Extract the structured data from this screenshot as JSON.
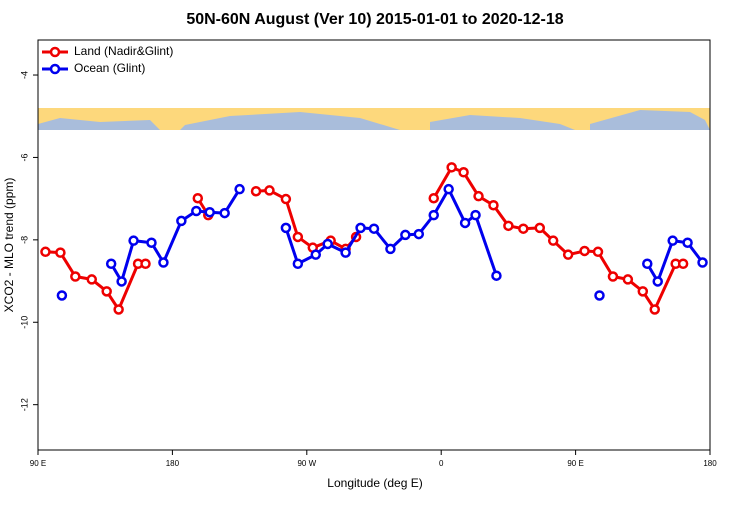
{
  "chart_data": {
    "type": "line",
    "title": "50N-60N August (Ver 10)   2015-01-01 to 2020-12-18",
    "x_label": "Longitude (deg E)",
    "y_label": "XCO2 - MLO trend (ppm)",
    "xlim": [
      90,
      540
    ],
    "xticks": [
      {
        "value": 90,
        "label": "90 E"
      },
      180,
      {
        "value": 270,
        "label": "90 W"
      },
      {
        "value": 360,
        "label": "0"
      },
      {
        "value": 450,
        "label": "90 E"
      },
      {
        "value": 540,
        "label": "180"
      }
    ],
    "ylim": [
      -13.1,
      -3.15
    ],
    "yticks": [
      -12,
      -10,
      -8,
      -6,
      -4
    ],
    "legend": "top-left",
    "series": [
      {
        "name": "Land (Nadir&Glint)",
        "color": "#ee0000",
        "x": [
          95,
          105,
          115,
          126,
          136,
          144,
          157,
          162,
          null,
          197,
          204,
          null,
          236,
          245,
          256,
          264,
          274,
          286,
          296,
          303,
          null,
          355,
          367,
          375,
          385,
          395,
          405,
          415,
          426,
          435,
          445,
          456,
          465,
          475,
          485,
          495,
          503,
          517,
          522
        ],
        "values": [
          -8.29,
          -8.31,
          -8.89,
          -8.96,
          -9.25,
          -9.69,
          -8.58,
          -8.58,
          null,
          -6.99,
          -7.4,
          null,
          -6.82,
          -6.8,
          -7.01,
          -7.93,
          -8.19,
          -8.02,
          -8.22,
          -7.93,
          null,
          -6.99,
          -6.24,
          -6.36,
          -6.94,
          -7.16,
          -7.66,
          -7.73,
          -7.71,
          -8.02,
          -8.36,
          -8.27,
          -8.29,
          -8.89,
          -8.96,
          -9.25,
          -9.69,
          -8.58,
          -8.58
        ]
      },
      {
        "name": "Ocean (Glint)",
        "color": "#0000ee",
        "x": [
          106,
          null,
          139,
          146,
          154,
          166,
          174,
          186,
          196,
          205,
          215,
          225,
          null,
          256,
          264,
          276,
          284,
          296,
          306,
          315,
          326,
          336,
          345,
          355,
          365,
          376,
          383,
          397,
          null,
          466,
          null,
          498,
          505,
          515,
          525,
          535
        ],
        "values": [
          -9.35,
          null,
          -8.58,
          -9.01,
          -8.02,
          -8.07,
          -8.55,
          -7.54,
          -7.3,
          -7.33,
          -7.35,
          -6.77,
          null,
          -7.71,
          -8.58,
          -8.36,
          -8.1,
          -8.31,
          -7.71,
          -7.73,
          -8.22,
          -7.88,
          -7.86,
          -7.4,
          -6.77,
          -7.59,
          -7.4,
          -8.87,
          null,
          -9.35,
          null,
          -8.58,
          -9.01,
          -8.02,
          -8.07,
          -8.55
        ]
      }
    ]
  }
}
